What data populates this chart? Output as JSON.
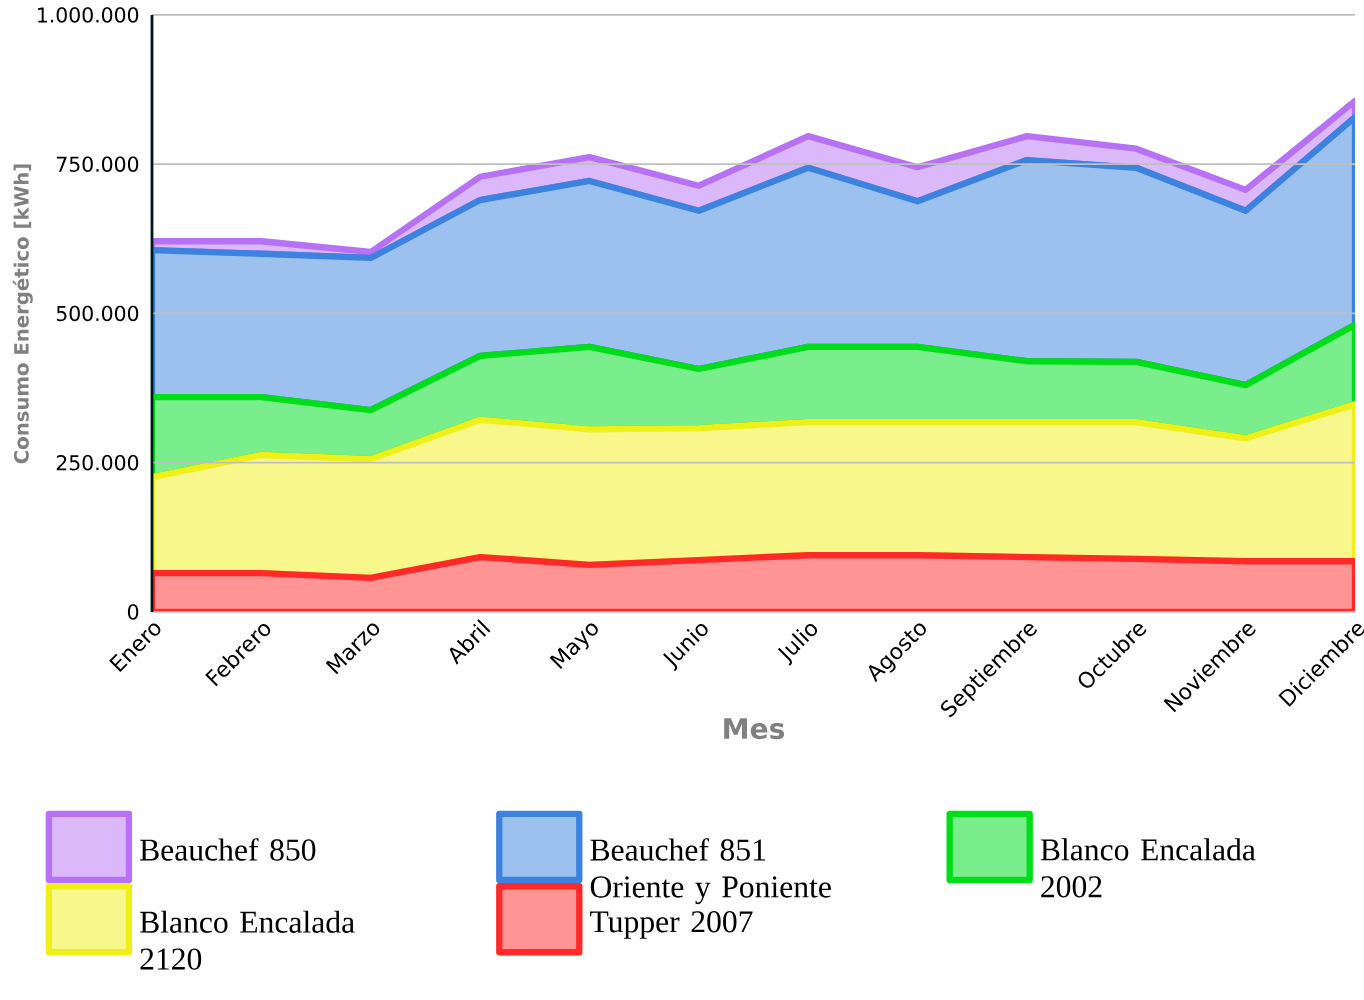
{
  "chart_data": {
    "type": "area",
    "stacked": true,
    "xlabel": "Mes",
    "ylabel": "Consumo Energético [kWh]",
    "categories": [
      "Enero",
      "Febrero",
      "Marzo",
      "Abril",
      "Mayo",
      "Junio",
      "Julio",
      "Agosto",
      "Septiembre",
      "Octubre",
      "Noviembre",
      "Diciembre"
    ],
    "series": [
      {
        "name": "Tupper 2007",
        "color": "#ff9494",
        "values": [
          65000,
          65000,
          57000,
          92000,
          79000,
          87000,
          95000,
          95000,
          92000,
          89000,
          85000,
          85000
        ]
      },
      {
        "name": "Blanco Encalada 2120",
        "color": "#f7f78c",
        "values": [
          161000,
          198000,
          199000,
          230000,
          227000,
          221000,
          223000,
          223000,
          226000,
          229000,
          206000,
          263000
        ]
      },
      {
        "name": "Blanco Encalada 2002",
        "color": "#7aee8c",
        "values": [
          134000,
          97000,
          82000,
          107000,
          138000,
          99000,
          126000,
          126000,
          102000,
          101000,
          89000,
          133000
        ]
      },
      {
        "name": "Beauchef 851 Oriente y Poniente",
        "color": "#9dc1ef",
        "values": [
          246000,
          240000,
          255000,
          261000,
          278000,
          265000,
          300000,
          244000,
          337000,
          325000,
          292000,
          348000
        ]
      },
      {
        "name": "Beauchef 850",
        "color": "#dbb8fa",
        "values": [
          15000,
          21000,
          10000,
          39000,
          40000,
          42000,
          53000,
          57000,
          40000,
          32000,
          35000,
          27000
        ]
      }
    ],
    "ylim": [
      0,
      1000000
    ],
    "yticks": [
      {
        "value": 0,
        "label": "0"
      },
      {
        "value": 250000,
        "label": "250.000"
      },
      {
        "value": 500000,
        "label": "500.000"
      },
      {
        "value": 750000,
        "label": "750.000"
      },
      {
        "value": 1000000,
        "label": "1.000.000"
      }
    ],
    "grid": "y",
    "legend": "bottom"
  }
}
